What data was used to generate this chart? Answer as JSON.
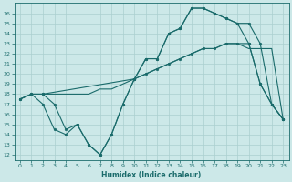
{
  "title": "",
  "xlabel": "Humidex (Indice chaleur)",
  "bg_color": "#cce8e8",
  "line_color": "#1a6b6b",
  "grid_color": "#aacfcf",
  "series1_x": [
    0,
    1,
    2,
    3,
    4,
    5,
    6,
    7,
    8,
    9,
    10,
    11,
    12,
    13,
    14,
    15,
    16,
    17,
    18,
    19,
    20,
    21,
    22,
    23
  ],
  "series1_y": [
    17.5,
    18.0,
    17.0,
    14.5,
    14.0,
    15.0,
    13.0,
    12.0,
    14.0,
    17.0,
    19.5,
    21.5,
    21.5,
    24.0,
    24.5,
    26.5,
    26.5,
    26.0,
    25.5,
    25.0,
    23.0,
    19.0,
    17.0,
    15.5
  ],
  "series2_x": [
    0,
    1,
    2,
    3,
    4,
    5,
    6,
    7,
    8,
    9,
    10,
    11,
    12,
    13,
    14,
    15,
    16,
    17,
    18,
    19,
    20,
    21,
    22,
    23
  ],
  "series2_y": [
    17.5,
    18.0,
    18.0,
    18.0,
    18.0,
    18.0,
    18.0,
    18.5,
    18.5,
    19.0,
    19.5,
    20.0,
    20.5,
    21.0,
    21.5,
    22.0,
    22.5,
    22.5,
    23.0,
    23.0,
    22.5,
    22.5,
    22.5,
    15.5
  ],
  "series3_x": [
    0,
    1,
    2,
    10,
    11,
    12,
    13,
    14,
    15,
    16,
    17,
    18,
    19,
    20,
    21,
    22,
    23
  ],
  "series3_y": [
    17.5,
    18.0,
    18.0,
    19.5,
    20.0,
    20.5,
    21.0,
    21.5,
    22.0,
    22.5,
    22.5,
    23.0,
    23.0,
    23.0,
    19.0,
    17.0,
    15.5
  ],
  "series4_x": [
    2,
    3,
    4,
    5,
    6,
    7,
    8,
    9,
    10,
    11,
    12,
    13,
    14,
    15,
    16,
    17,
    18,
    19,
    20,
    21,
    22,
    23
  ],
  "series4_y": [
    18.0,
    17.0,
    14.5,
    15.0,
    13.0,
    12.0,
    14.0,
    17.0,
    19.5,
    21.5,
    21.5,
    24.0,
    24.5,
    26.5,
    26.5,
    26.0,
    25.5,
    25.0,
    25.0,
    23.0,
    17.0,
    15.5
  ],
  "xlim": [
    -0.5,
    23.5
  ],
  "ylim": [
    11.5,
    27.0
  ],
  "xticks": [
    0,
    1,
    2,
    3,
    4,
    5,
    6,
    7,
    8,
    9,
    10,
    11,
    12,
    13,
    14,
    15,
    16,
    17,
    18,
    19,
    20,
    21,
    22,
    23
  ],
  "yticks": [
    12,
    13,
    14,
    15,
    16,
    17,
    18,
    19,
    20,
    21,
    22,
    23,
    24,
    25,
    26
  ]
}
